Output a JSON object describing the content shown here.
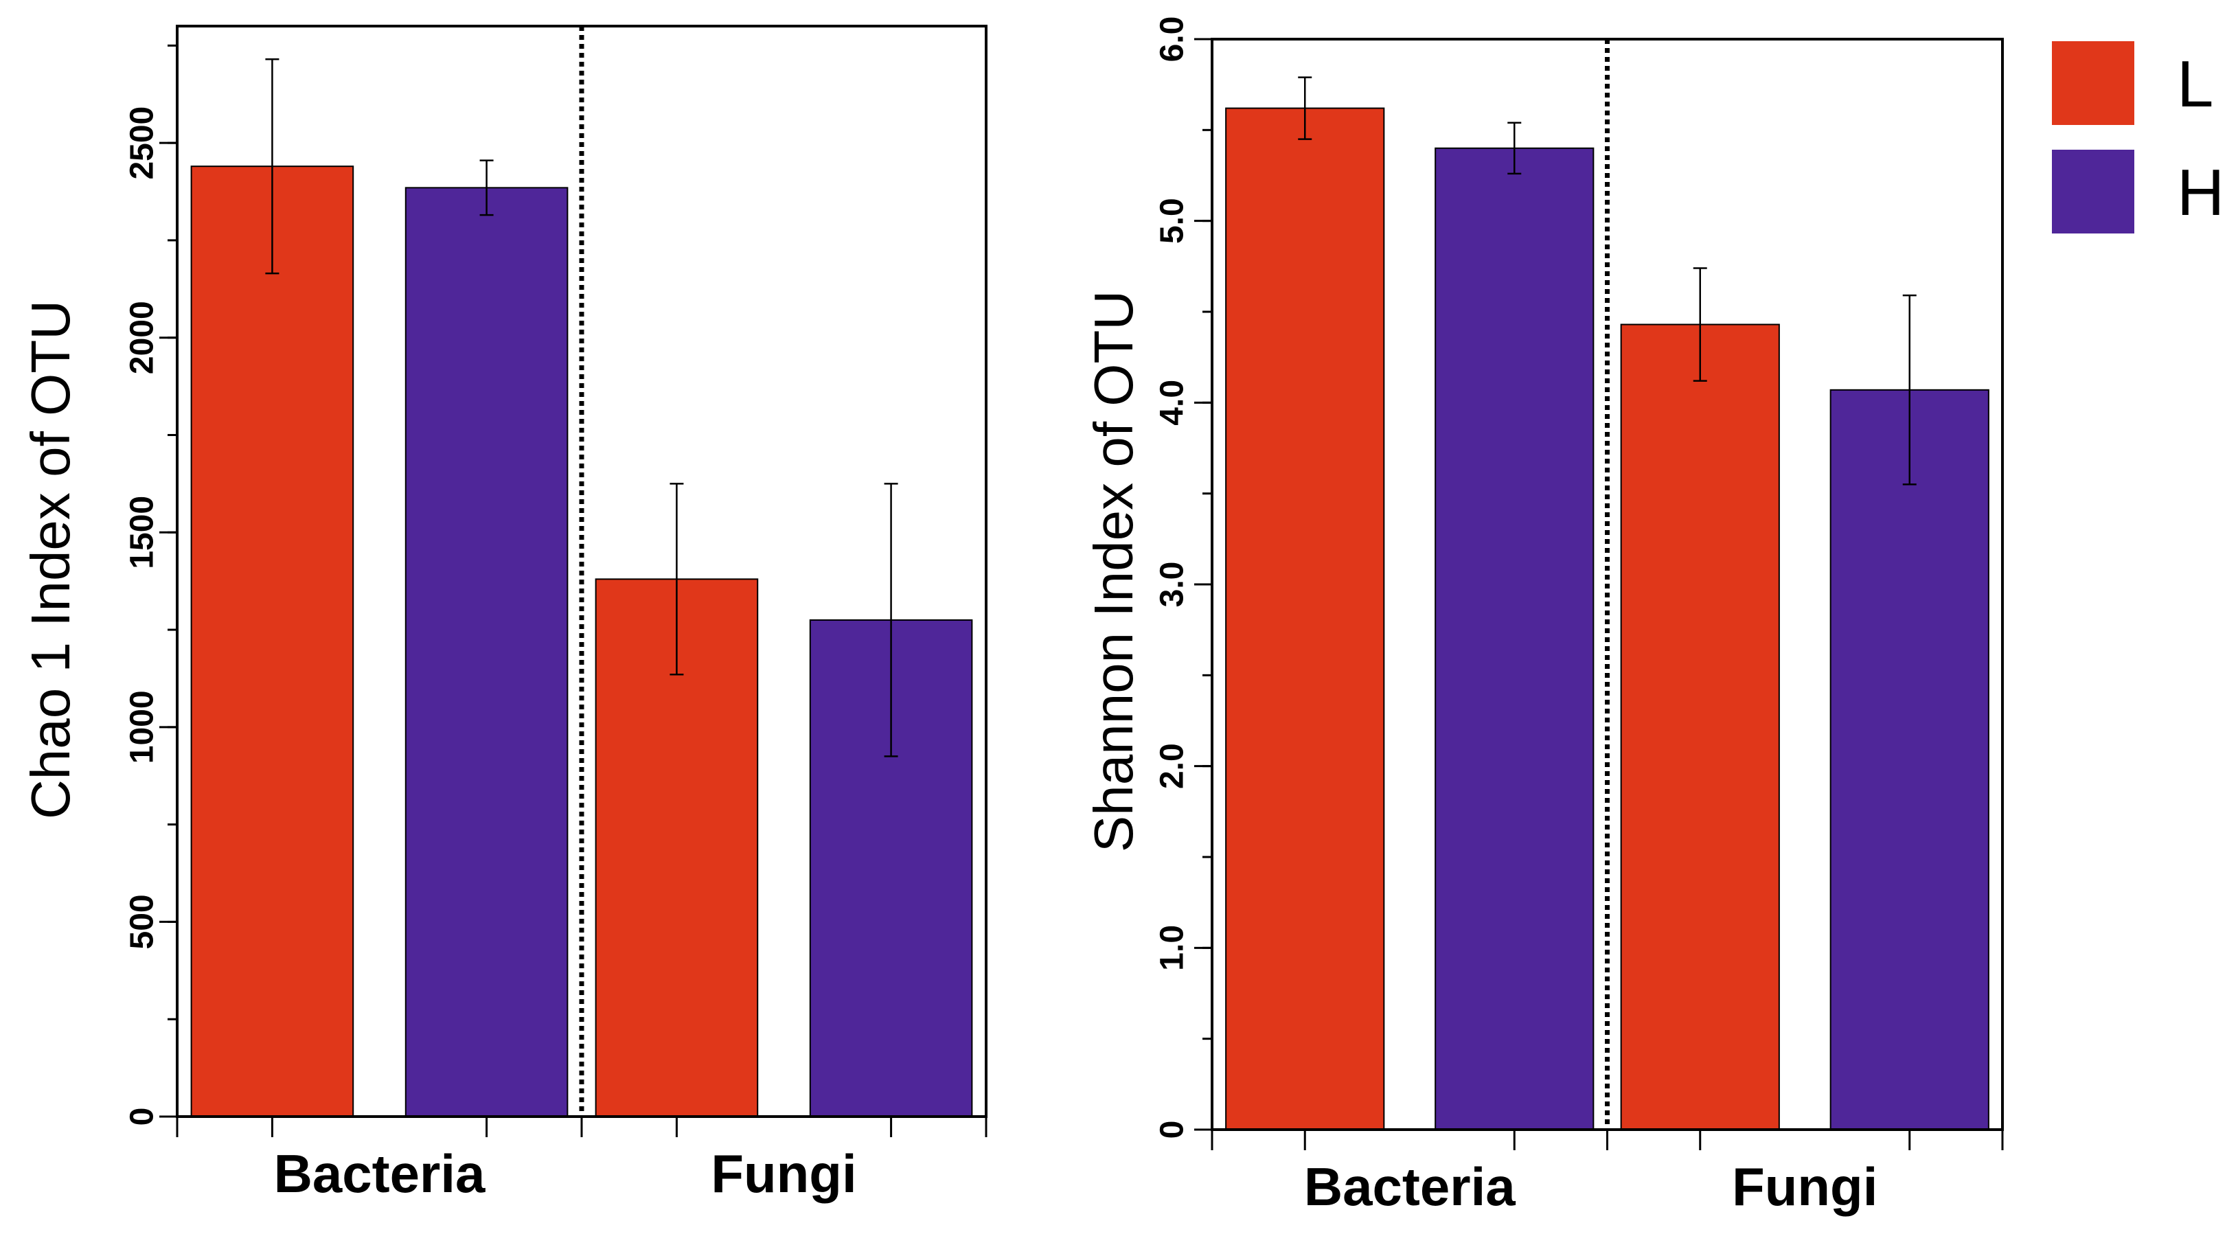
{
  "colors": {
    "L": "#e0371a",
    "H": "#4f2699"
  },
  "legend": [
    {
      "key": "L",
      "label": "L"
    },
    {
      "key": "H",
      "label": "H"
    }
  ],
  "chart_data": [
    {
      "type": "bar",
      "title": "",
      "xlabel": "",
      "ylabel": "Chao 1 Index of OTU",
      "categories": [
        "Bacteria",
        "Fungi"
      ],
      "ylim": [
        0,
        2800
      ],
      "yticks": [
        0,
        500,
        1000,
        1500,
        2000,
        2500
      ],
      "ytick_labels": [
        "0",
        "500",
        "1000",
        "1500",
        "2000",
        "2500"
      ],
      "separator_between_categories": true,
      "series": [
        {
          "name": "L",
          "values": [
            2440,
            1380
          ],
          "error": [
            275,
            245
          ]
        },
        {
          "name": "H",
          "values": [
            2385,
            1275
          ],
          "error": [
            70,
            350
          ]
        }
      ]
    },
    {
      "type": "bar",
      "title": "",
      "xlabel": "",
      "ylabel": "Shannon Index of OTU",
      "categories": [
        "Bacteria",
        "Fungi"
      ],
      "ylim": [
        0,
        6.0
      ],
      "yticks": [
        0,
        1,
        2,
        3,
        4,
        5,
        6
      ],
      "ytick_labels": [
        "0",
        "1.0",
        "2.0",
        "3.0",
        "4.0",
        "5.0",
        "6.0"
      ],
      "separator_between_categories": true,
      "series": [
        {
          "name": "L",
          "values": [
            5.62,
            4.43
          ],
          "error": [
            0.17,
            0.31
          ]
        },
        {
          "name": "H",
          "values": [
            5.4,
            4.07
          ],
          "error": [
            0.14,
            0.52
          ]
        }
      ]
    }
  ]
}
